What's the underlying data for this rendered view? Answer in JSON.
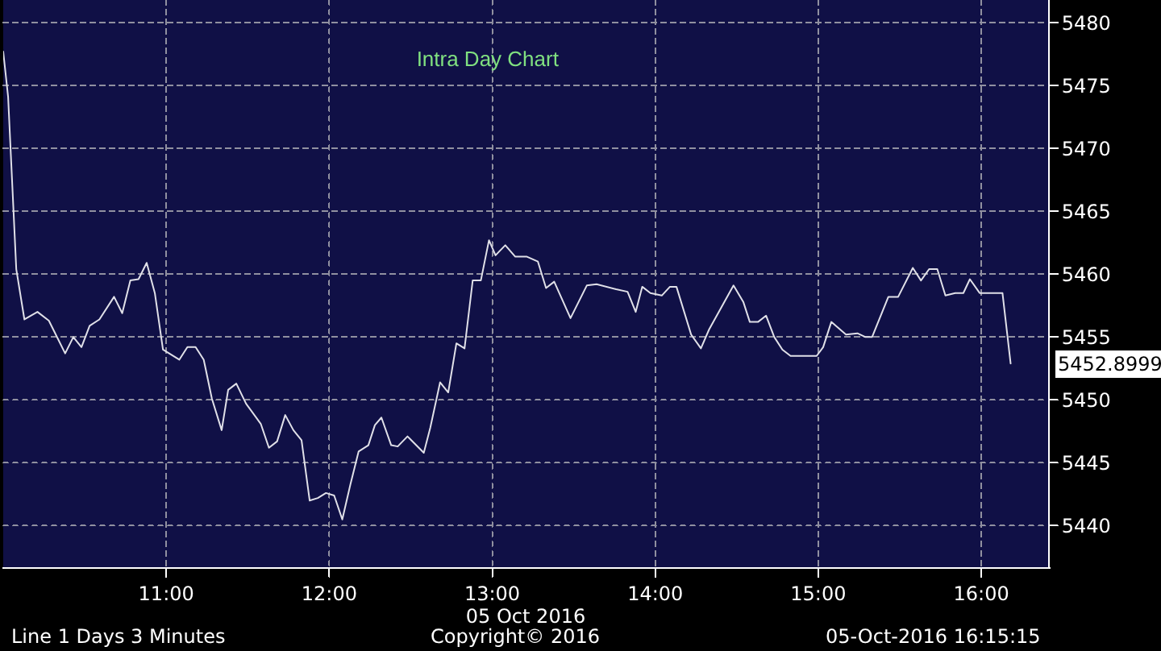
{
  "chart_data": {
    "type": "line",
    "title": "Intra Day Chart",
    "xlabel": "05 Oct 2016",
    "x": [
      10.0,
      10.03,
      10.08,
      10.13,
      10.21,
      10.28,
      10.38,
      10.43,
      10.48,
      10.53,
      10.59,
      10.68,
      10.73,
      10.78,
      10.83,
      10.88,
      10.93,
      10.98,
      11.08,
      11.13,
      11.18,
      11.23,
      11.28,
      11.34,
      11.38,
      11.43,
      11.49,
      11.58,
      11.63,
      11.68,
      11.73,
      11.78,
      11.83,
      11.88,
      11.93,
      11.98,
      12.03,
      12.08,
      12.13,
      12.18,
      12.24,
      12.28,
      12.32,
      12.38,
      12.42,
      12.48,
      12.58,
      12.62,
      12.68,
      12.73,
      12.78,
      12.83,
      12.88,
      12.93,
      12.98,
      13.02,
      13.08,
      13.14,
      13.21,
      13.28,
      13.33,
      13.38,
      13.48,
      13.58,
      13.64,
      13.76,
      13.83,
      13.88,
      13.92,
      13.97,
      14.04,
      14.09,
      14.13,
      14.22,
      14.28,
      14.33,
      14.48,
      14.54,
      14.58,
      14.63,
      14.68,
      14.73,
      14.78,
      14.83,
      14.99,
      15.03,
      15.08,
      15.17,
      15.24,
      15.29,
      15.33,
      15.43,
      15.49,
      15.58,
      15.63,
      15.68,
      15.73,
      15.78,
      15.84,
      15.89,
      15.93,
      15.99,
      16.13,
      16.18
    ],
    "series": [
      {
        "color": "#e0e0e8",
        "values": [
          5477.7,
          5474.1,
          5460.4,
          5456.4,
          5457.0,
          5456.3,
          5453.7,
          5455.0,
          5454.2,
          5455.9,
          5456.4,
          5458.2,
          5456.9,
          5459.5,
          5459.6,
          5460.9,
          5458.5,
          5454.0,
          5453.2,
          5454.2,
          5454.2,
          5453.2,
          5450.1,
          5447.6,
          5450.8,
          5451.3,
          5449.7,
          5448.1,
          5446.2,
          5446.7,
          5448.8,
          5447.6,
          5446.8,
          5442.0,
          5442.2,
          5442.6,
          5442.4,
          5440.5,
          5443.3,
          5445.9,
          5446.4,
          5448.0,
          5448.6,
          5446.4,
          5446.3,
          5447.1,
          5445.8,
          5447.8,
          5451.4,
          5450.6,
          5454.5,
          5454.1,
          5459.5,
          5459.5,
          5462.7,
          5461.5,
          5462.3,
          5461.4,
          5461.4,
          5461.0,
          5458.9,
          5459.4,
          5456.5,
          5459.1,
          5459.2,
          5458.8,
          5458.6,
          5457.0,
          5459.0,
          5458.5,
          5458.3,
          5459.0,
          5459.0,
          5455.2,
          5454.1,
          5455.6,
          5459.1,
          5457.8,
          5456.2,
          5456.2,
          5456.7,
          5455.0,
          5454.0,
          5453.5,
          5453.5,
          5454.2,
          5456.2,
          5455.2,
          5455.3,
          5455.0,
          5455.0,
          5458.2,
          5458.2,
          5460.5,
          5459.5,
          5460.4,
          5460.4,
          5458.3,
          5458.5,
          5458.5,
          5459.6,
          5458.5,
          5458.5,
          5452.9
        ]
      }
    ],
    "xlim": [
      10.0,
      16.41
    ],
    "ylim": [
      5436.7,
      5481.8
    ],
    "xticks": [
      {
        "value": 11,
        "label": "11:00"
      },
      {
        "value": 12,
        "label": "12:00"
      },
      {
        "value": 13,
        "label": "13:00"
      },
      {
        "value": 14,
        "label": "14:00"
      },
      {
        "value": 15,
        "label": "15:00"
      },
      {
        "value": 16,
        "label": "16:00"
      }
    ],
    "yticks": [
      5440,
      5445,
      5450,
      5455,
      5460,
      5465,
      5470,
      5475,
      5480
    ],
    "grid": true,
    "marker": "none",
    "line_style": "solid",
    "annotations": [
      {
        "text": "5452.8999",
        "x": 16.18,
        "y": 5452.8999
      },
      "Line 1 Days 3 Minutes",
      "Copyright© 2016",
      "05-Oct-2016 16:15:15"
    ]
  }
}
